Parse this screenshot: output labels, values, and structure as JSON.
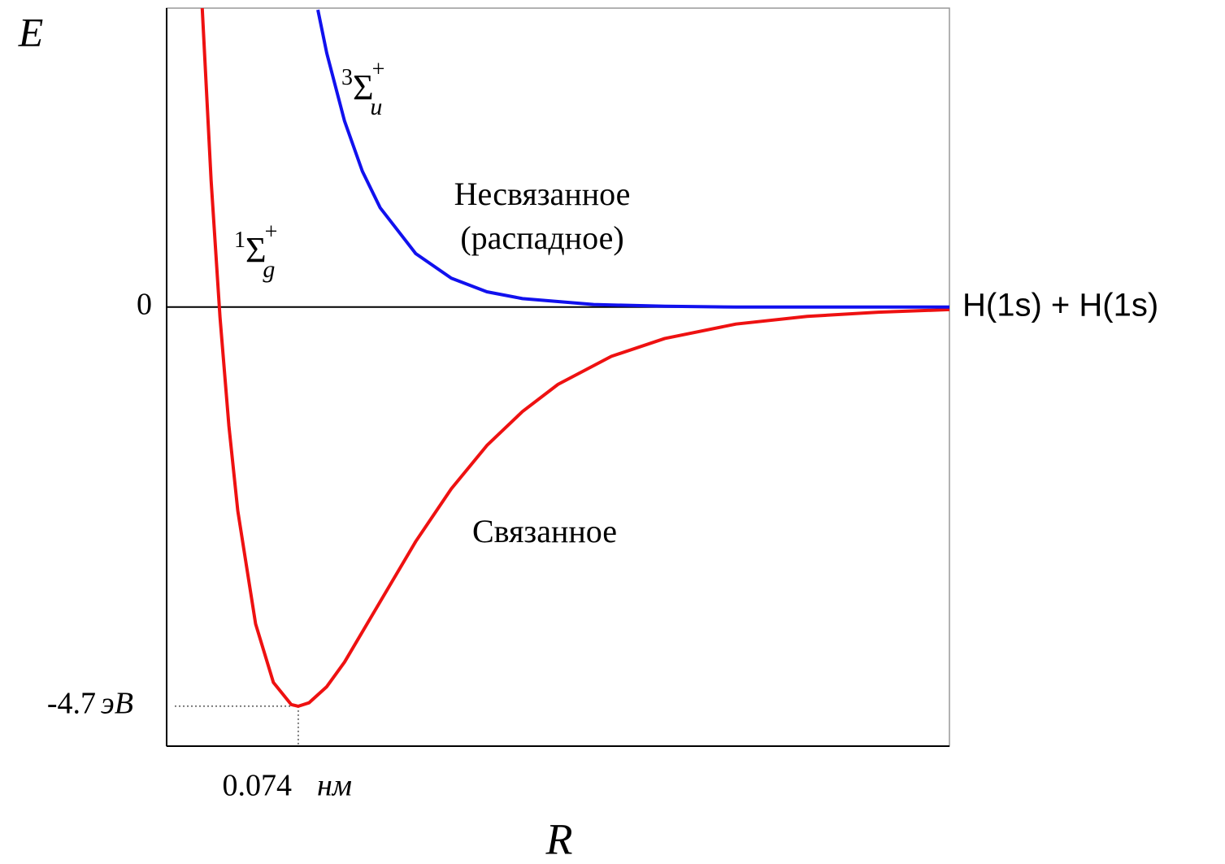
{
  "chart_data": {
    "type": "line",
    "ylabel": "E",
    "xlabel": "R",
    "xlim": [
      0,
      0.44
    ],
    "ylim": [
      -5.17,
      3.52
    ],
    "xticks": [
      0.074
    ],
    "x_unit": "нм",
    "yticks": [
      0,
      -4.7
    ],
    "y_unit": "эВ",
    "series": [
      {
        "color": "#ee1111",
        "x": [
          0.02,
          0.025,
          0.03,
          0.035,
          0.04,
          0.05,
          0.06,
          0.07,
          0.074,
          0.08,
          0.09,
          0.1,
          0.12,
          0.14,
          0.16,
          0.18,
          0.2,
          0.22,
          0.25,
          0.28,
          0.32,
          0.36,
          0.4,
          0.44
        ],
        "values": [
          3.52,
          1.49,
          -0.12,
          -1.4,
          -2.4,
          -3.73,
          -4.42,
          -4.68,
          -4.7,
          -4.66,
          -4.47,
          -4.18,
          -3.47,
          -2.76,
          -2.14,
          -1.63,
          -1.23,
          -0.91,
          -0.58,
          -0.37,
          -0.2,
          -0.11,
          -0.06,
          -0.03
        ]
      },
      {
        "color": "#1111ee",
        "x": [
          0.085,
          0.09,
          0.1,
          0.11,
          0.12,
          0.14,
          0.16,
          0.18,
          0.2,
          0.24,
          0.28,
          0.32,
          0.44
        ],
        "values": [
          3.5,
          2.99,
          2.19,
          1.6,
          1.17,
          0.63,
          0.34,
          0.18,
          0.1,
          0.03,
          0.01,
          0,
          0
        ]
      }
    ],
    "annotations": {
      "asymptote": "H(1s) + H(1s)",
      "antibonding": [
        "Несвязанное",
        "(распадное)"
      ],
      "bonding": "Связанное",
      "bonding_term": {
        "multiplicity": "1",
        "symbol": "Σ",
        "sub": "g",
        "sup": "+"
      },
      "antibonding_term": {
        "multiplicity": "3",
        "symbol": "Σ",
        "sub": "u",
        "sup": "+"
      }
    }
  }
}
